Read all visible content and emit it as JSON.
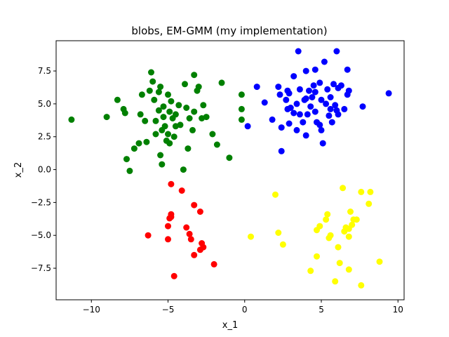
{
  "chart_data": {
    "type": "scatter",
    "title": "blobs, EM-GMM (my implementation)",
    "xlabel": "x_1",
    "ylabel": "x_2",
    "xlim": [
      -12.3,
      10.4
    ],
    "ylim": [
      -9.9,
      9.8
    ],
    "xticks": [
      -10,
      -5,
      0,
      5,
      10
    ],
    "xtick_labels": [
      "−10",
      "−5",
      "0",
      "5",
      "10"
    ],
    "yticks": [
      -7.5,
      -5.0,
      -2.5,
      0.0,
      2.5,
      5.0,
      7.5
    ],
    "ytick_labels": [
      "−7.5",
      "−5.0",
      "−2.5",
      "0.0",
      "2.5",
      "5.0",
      "7.5"
    ],
    "grid": false,
    "series": [
      {
        "color": "#0000ff",
        "points": [
          [
            3.5,
            9.0
          ],
          [
            6.0,
            9.0
          ],
          [
            5.2,
            8.2
          ],
          [
            6.7,
            7.6
          ],
          [
            3.2,
            7.1
          ],
          [
            4.0,
            7.5
          ],
          [
            4.6,
            7.6
          ],
          [
            2.2,
            6.3
          ],
          [
            2.3,
            5.7
          ],
          [
            2.8,
            6.0
          ],
          [
            3.6,
            6.1
          ],
          [
            4.5,
            6.4
          ],
          [
            4.9,
            6.6
          ],
          [
            5.8,
            6.5
          ],
          [
            6.3,
            6.4
          ],
          [
            6.1,
            6.2
          ],
          [
            9.4,
            5.8
          ],
          [
            1.3,
            5.1
          ],
          [
            2.7,
            5.3
          ],
          [
            3.4,
            5.0
          ],
          [
            3.0,
            4.7
          ],
          [
            4.3,
            4.8
          ],
          [
            4.0,
            5.4
          ],
          [
            5.0,
            5.3
          ],
          [
            5.6,
            5.5
          ],
          [
            6.7,
            5.7
          ],
          [
            5.9,
            4.9
          ],
          [
            6.5,
            4.6
          ],
          [
            7.7,
            4.8
          ],
          [
            2.8,
            4.6
          ],
          [
            3.2,
            4.3
          ],
          [
            4.6,
            4.4
          ],
          [
            5.5,
            4.1
          ],
          [
            6.1,
            4.2
          ],
          [
            1.8,
            3.8
          ],
          [
            2.4,
            3.2
          ],
          [
            2.9,
            3.5
          ],
          [
            3.4,
            3.0
          ],
          [
            3.8,
            3.6
          ],
          [
            4.0,
            2.6
          ],
          [
            4.9,
            3.4
          ],
          [
            5.7,
            3.6
          ],
          [
            5.0,
            3.0
          ],
          [
            5.1,
            2.0
          ],
          [
            2.4,
            1.4
          ],
          [
            0.8,
            6.3
          ],
          [
            0.2,
            3.3
          ],
          [
            4.6,
            5.9
          ],
          [
            5.3,
            5.0
          ],
          [
            6.8,
            6.0
          ],
          [
            4.2,
            6.0
          ],
          [
            3.9,
            5.3
          ],
          [
            4.7,
            3.6
          ],
          [
            5.4,
            6.1
          ],
          [
            6.0,
            4.5
          ],
          [
            3.6,
            4.2
          ],
          [
            4.4,
            5.5
          ],
          [
            2.9,
            5.8
          ],
          [
            5.6,
            4.6
          ],
          [
            4.1,
            4.2
          ]
        ]
      },
      {
        "color": "#008000",
        "points": [
          [
            -11.3,
            3.8
          ],
          [
            -9.0,
            4.0
          ],
          [
            -8.3,
            5.3
          ],
          [
            -7.8,
            4.3
          ],
          [
            -7.9,
            4.6
          ],
          [
            -7.7,
            0.8
          ],
          [
            -7.5,
            -0.1
          ],
          [
            -7.2,
            1.6
          ],
          [
            -6.9,
            2.0
          ],
          [
            -6.8,
            4.2
          ],
          [
            -6.7,
            5.7
          ],
          [
            -6.4,
            2.1
          ],
          [
            -6.2,
            6.0
          ],
          [
            -6.1,
            7.4
          ],
          [
            -6.0,
            6.7
          ],
          [
            -5.9,
            5.3
          ],
          [
            -5.8,
            3.7
          ],
          [
            -5.8,
            2.7
          ],
          [
            -5.6,
            4.5
          ],
          [
            -5.6,
            5.9
          ],
          [
            -5.5,
            6.3
          ],
          [
            -5.4,
            3.0
          ],
          [
            -5.3,
            4.8
          ],
          [
            -5.2,
            3.3
          ],
          [
            -5.1,
            2.2
          ],
          [
            -5.0,
            5.7
          ],
          [
            -4.9,
            4.4
          ],
          [
            -4.8,
            5.2
          ],
          [
            -4.7,
            3.9
          ],
          [
            -4.6,
            2.5
          ],
          [
            -4.5,
            4.2
          ],
          [
            -4.3,
            4.9
          ],
          [
            -4.2,
            3.4
          ],
          [
            -4.0,
            0.0
          ],
          [
            -3.9,
            6.5
          ],
          [
            -3.8,
            4.7
          ],
          [
            -3.7,
            1.6
          ],
          [
            -3.6,
            3.9
          ],
          [
            -3.4,
            3.0
          ],
          [
            -3.3,
            4.4
          ],
          [
            -3.3,
            7.2
          ],
          [
            -3.1,
            6.0
          ],
          [
            -3.0,
            6.3
          ],
          [
            -2.8,
            3.9
          ],
          [
            -2.7,
            4.9
          ],
          [
            -2.5,
            4.0
          ],
          [
            -2.1,
            2.7
          ],
          [
            -1.8,
            1.9
          ],
          [
            -1.5,
            6.6
          ],
          [
            -1.0,
            0.9
          ],
          [
            -0.2,
            5.7
          ],
          [
            -0.2,
            4.6
          ],
          [
            -0.2,
            3.8
          ],
          [
            -5.5,
            1.1
          ],
          [
            -5.4,
            0.4
          ],
          [
            -5.0,
            2.7
          ],
          [
            -4.9,
            2.0
          ],
          [
            -6.5,
            3.7
          ],
          [
            -4.5,
            3.3
          ],
          [
            -5.3,
            4.0
          ]
        ]
      },
      {
        "color": "#ff0000",
        "points": [
          [
            -4.8,
            -1.1
          ],
          [
            -4.1,
            -1.6
          ],
          [
            -3.3,
            -2.7
          ],
          [
            -2.9,
            -3.2
          ],
          [
            -4.8,
            -3.4
          ],
          [
            -4.8,
            -3.6
          ],
          [
            -4.9,
            -3.7
          ],
          [
            -5.0,
            -4.3
          ],
          [
            -3.8,
            -4.4
          ],
          [
            -3.6,
            -4.9
          ],
          [
            -3.5,
            -5.3
          ],
          [
            -6.3,
            -5.0
          ],
          [
            -5.0,
            -5.3
          ],
          [
            -2.8,
            -5.6
          ],
          [
            -2.7,
            -5.9
          ],
          [
            -2.9,
            -6.1
          ],
          [
            -3.3,
            -6.5
          ],
          [
            -2.0,
            -7.2
          ],
          [
            -4.6,
            -8.1
          ]
        ]
      },
      {
        "color": "#ffff00",
        "points": [
          [
            2.0,
            -1.9
          ],
          [
            6.4,
            -1.4
          ],
          [
            7.6,
            -1.7
          ],
          [
            8.2,
            -1.7
          ],
          [
            8.1,
            -2.6
          ],
          [
            5.4,
            -3.4
          ],
          [
            6.9,
            -3.2
          ],
          [
            5.3,
            -3.8
          ],
          [
            7.1,
            -3.8
          ],
          [
            7.3,
            -3.8
          ],
          [
            4.9,
            -4.3
          ],
          [
            4.7,
            -4.6
          ],
          [
            6.6,
            -4.4
          ],
          [
            6.8,
            -4.5
          ],
          [
            6.5,
            -4.7
          ],
          [
            2.2,
            -4.8
          ],
          [
            5.6,
            -5.0
          ],
          [
            5.5,
            -5.2
          ],
          [
            6.8,
            -5.1
          ],
          [
            0.4,
            -5.1
          ],
          [
            2.5,
            -5.7
          ],
          [
            6.1,
            -5.9
          ],
          [
            4.7,
            -6.6
          ],
          [
            6.2,
            -7.1
          ],
          [
            8.8,
            -7.0
          ],
          [
            4.3,
            -7.7
          ],
          [
            6.8,
            -7.6
          ],
          [
            5.9,
            -8.5
          ],
          [
            7.6,
            -8.8
          ],
          [
            7.0,
            -4.2
          ]
        ]
      }
    ]
  }
}
